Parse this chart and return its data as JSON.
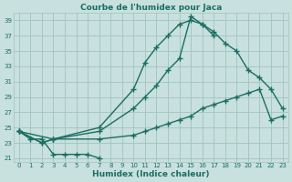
{
  "title": "Courbe de l'humidex pour Jaca",
  "xlabel": "Humidex (Indice chaleur)",
  "xlim": [
    -0.5,
    23.5
  ],
  "ylim": [
    20.5,
    40.0
  ],
  "yticks": [
    21,
    23,
    25,
    27,
    29,
    31,
    33,
    35,
    37,
    39
  ],
  "xticks": [
    0,
    1,
    2,
    3,
    4,
    5,
    6,
    7,
    8,
    9,
    10,
    11,
    12,
    13,
    14,
    15,
    16,
    17,
    18,
    19,
    20,
    21,
    22,
    23
  ],
  "bg_color": "#c8e0de",
  "grid_color": "#a0c4c0",
  "line_color": "#1a6e62",
  "line_width": 1.0,
  "marker": "+",
  "marker_size": 4,
  "marker_ew": 1.0,
  "series": [
    {
      "comment": "V-shape dip: 0->1->2->3->4->5->6->7",
      "x": [
        0,
        1,
        2,
        3,
        4,
        5,
        6,
        7
      ],
      "y": [
        24.5,
        23.5,
        23.5,
        21.5,
        21.5,
        21.5,
        21.5,
        21.0
      ]
    },
    {
      "x": [
        0,
        3,
        7,
        10,
        11,
        12,
        13,
        14,
        15,
        16,
        17
      ],
      "y": [
        24.5,
        23.5,
        25.0,
        30.0,
        33.5,
        35.5,
        37.0,
        38.5,
        39.0,
        38.5,
        37.0
      ]
    },
    {
      "x": [
        0,
        2,
        3,
        7,
        10,
        11,
        12,
        13,
        14,
        15,
        16,
        17,
        18,
        19,
        20,
        21,
        22,
        23
      ],
      "y": [
        24.5,
        23.0,
        23.5,
        24.5,
        27.5,
        29.0,
        30.5,
        32.5,
        34.0,
        39.5,
        38.5,
        37.5,
        36.0,
        35.0,
        32.5,
        31.5,
        30.0,
        27.5
      ]
    },
    {
      "x": [
        0,
        2,
        3,
        7,
        10,
        11,
        12,
        13,
        14,
        15,
        16,
        17,
        18,
        19,
        20,
        21,
        22,
        23
      ],
      "y": [
        24.5,
        23.0,
        23.5,
        23.5,
        24.0,
        24.5,
        25.0,
        25.5,
        26.0,
        26.5,
        27.5,
        28.0,
        28.5,
        29.0,
        29.5,
        30.0,
        26.0,
        26.5
      ]
    }
  ],
  "title_fontsize": 6.5,
  "tick_fontsize": 5.0,
  "xlabel_fontsize": 6.5,
  "title_color": "#1a6e62",
  "label_color": "#1a6e62"
}
